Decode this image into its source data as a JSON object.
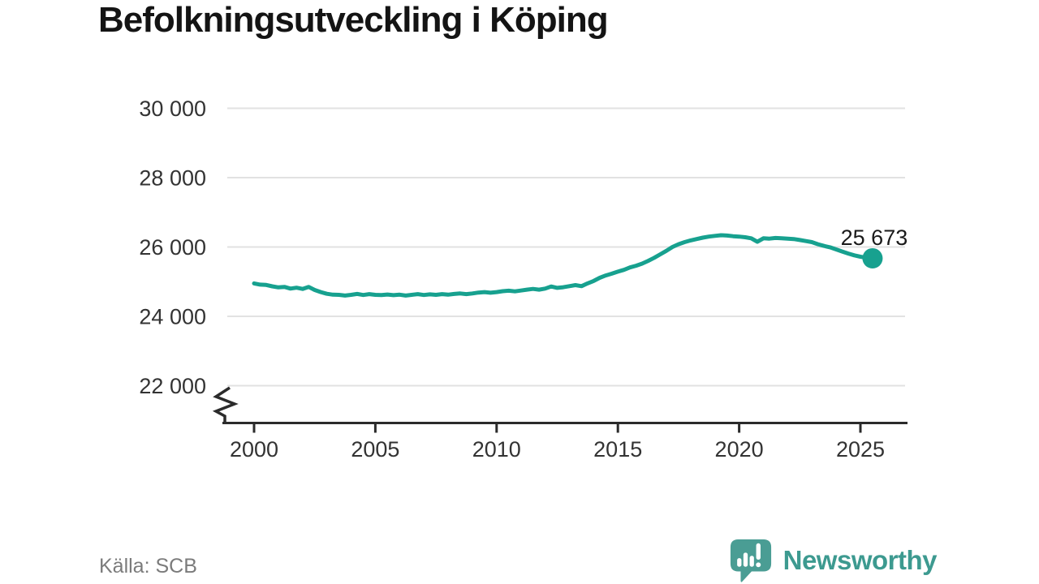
{
  "page": {
    "title": "Befolkningsutveckling i Köping",
    "source": "Källa: SCB"
  },
  "branding": {
    "name": "Newsworthy",
    "logo_icon": "newsworthy-speech-bubble-barchart-icon",
    "logo_color": "#4a9d94",
    "wordmark_color": "#3d9a90"
  },
  "chart_data": {
    "type": "line",
    "title": "Befolkningsutveckling i Köping",
    "source": "Källa: SCB",
    "grid": "horizontal",
    "legend": "none",
    "axis_break_bottom_left": true,
    "line_color": "#17a18f",
    "grid_color": "#e2e2e2",
    "axis_color": "#2b2b2b",
    "tick_label_color": "#333333",
    "xlim": [
      2000,
      2025.5
    ],
    "ylim": [
      22000,
      30000
    ],
    "x_ticks": [
      2000,
      2005,
      2010,
      2015,
      2020,
      2025
    ],
    "x_tick_labels": [
      "2000",
      "2005",
      "2010",
      "2015",
      "2020",
      "2025"
    ],
    "y_ticks": [
      22000,
      24000,
      26000,
      28000,
      30000
    ],
    "y_tick_labels": [
      "22 000",
      "24 000",
      "26 000",
      "28 000",
      "30 000"
    ],
    "end_point": {
      "label": "25 673",
      "value": 25673,
      "x": 2025.5
    },
    "series": [
      {
        "name": "Befolkning i Köping",
        "x": [
          2000,
          2000.25,
          2000.5,
          2000.75,
          2001,
          2001.25,
          2001.5,
          2001.75,
          2002,
          2002.25,
          2002.5,
          2002.75,
          2003,
          2003.25,
          2003.5,
          2003.75,
          2004,
          2004.25,
          2004.5,
          2004.75,
          2005,
          2005.25,
          2005.5,
          2005.75,
          2006,
          2006.25,
          2006.5,
          2006.75,
          2007,
          2007.25,
          2007.5,
          2007.75,
          2008,
          2008.25,
          2008.5,
          2008.75,
          2009,
          2009.25,
          2009.5,
          2009.75,
          2010,
          2010.25,
          2010.5,
          2010.75,
          2011,
          2011.25,
          2011.5,
          2011.75,
          2012,
          2012.25,
          2012.5,
          2012.75,
          2013,
          2013.25,
          2013.5,
          2013.75,
          2014,
          2014.25,
          2014.5,
          2014.75,
          2015,
          2015.25,
          2015.5,
          2015.75,
          2016,
          2016.25,
          2016.5,
          2016.75,
          2017,
          2017.25,
          2017.5,
          2017.75,
          2018,
          2018.25,
          2018.5,
          2018.75,
          2019,
          2019.25,
          2019.5,
          2019.75,
          2020,
          2020.25,
          2020.5,
          2020.75,
          2021,
          2021.25,
          2021.5,
          2021.75,
          2022,
          2022.25,
          2022.5,
          2022.75,
          2023,
          2023.25,
          2023.5,
          2023.75,
          2024,
          2024.25,
          2024.5,
          2024.75,
          2025,
          2025.25,
          2025.5
        ],
        "y": [
          24950,
          24915,
          24905,
          24865,
          24835,
          24850,
          24800,
          24825,
          24790,
          24850,
          24760,
          24700,
          24650,
          24625,
          24620,
          24600,
          24620,
          24645,
          24615,
          24640,
          24620,
          24615,
          24630,
          24610,
          24625,
          24600,
          24620,
          24640,
          24615,
          24635,
          24620,
          24640,
          24625,
          24645,
          24660,
          24640,
          24660,
          24685,
          24700,
          24680,
          24700,
          24725,
          24740,
          24720,
          24745,
          24770,
          24790,
          24770,
          24800,
          24860,
          24820,
          24840,
          24870,
          24900,
          24870,
          24950,
          25020,
          25110,
          25180,
          25230,
          25290,
          25340,
          25410,
          25460,
          25520,
          25600,
          25690,
          25790,
          25890,
          26000,
          26080,
          26140,
          26190,
          26230,
          26270,
          26300,
          26320,
          26340,
          26330,
          26310,
          26300,
          26280,
          26250,
          26150,
          26250,
          26240,
          26260,
          26250,
          26240,
          26230,
          26200,
          26170,
          26140,
          26080,
          26030,
          25990,
          25930,
          25870,
          25810,
          25760,
          25720,
          25690,
          25673
        ]
      }
    ]
  }
}
